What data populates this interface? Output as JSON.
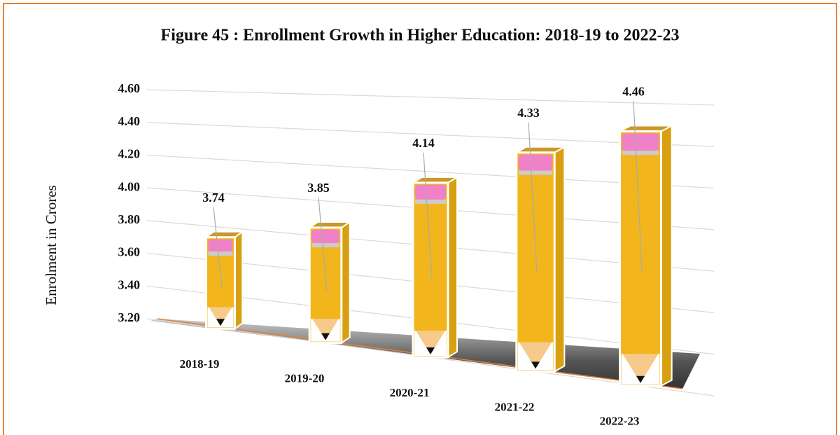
{
  "chart_data": {
    "type": "bar",
    "title": "Figure 45 : Enrollment Growth in Higher Education: 2018-19 to 2022-23",
    "y_label": "Enrolment in Crores",
    "categories": [
      "2018-19",
      "2019-20",
      "2020-21",
      "2021-22",
      "2022-23"
    ],
    "values": [
      3.74,
      3.85,
      4.14,
      4.33,
      4.46
    ],
    "color": "#f2b51c",
    "ylim": [
      3.2,
      4.6
    ],
    "yticks": [
      {
        "value": 3.2,
        "label": "3.20"
      },
      {
        "value": 3.4,
        "label": "3.40"
      },
      {
        "value": 3.6,
        "label": "3.60"
      },
      {
        "value": 3.8,
        "label": "3.80"
      },
      {
        "value": 4.0,
        "label": "4.00"
      },
      {
        "value": 4.2,
        "label": "4.20"
      },
      {
        "value": 4.4,
        "label": "4.40"
      },
      {
        "value": 4.6,
        "label": "4.60"
      }
    ],
    "grid": true
  }
}
